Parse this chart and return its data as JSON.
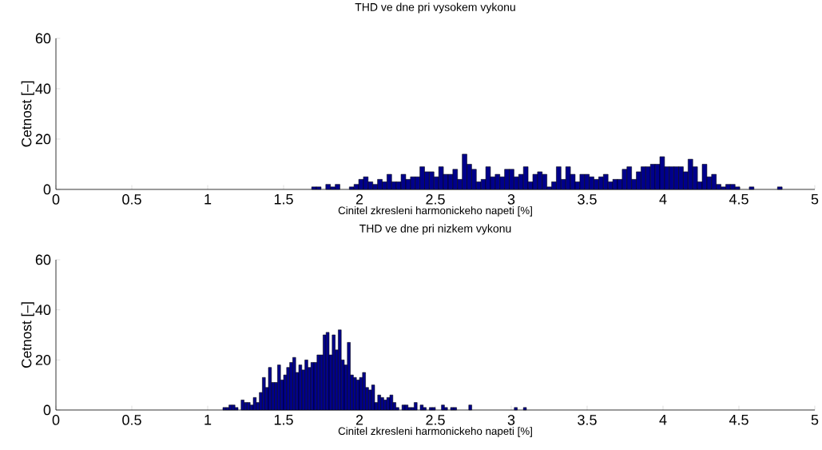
{
  "chart_data": [
    {
      "type": "histogram",
      "title": "THD ve dne pri vysokem vykonu",
      "xlabel": "Cinitel zkresleni harmonickeho napeti [%]",
      "ylabel": "Cetnost [–]",
      "color": "#00008b",
      "bins": [
        1.685,
        1.716,
        1.747,
        1.778,
        1.809,
        1.84,
        1.871,
        1.902,
        1.933,
        1.964,
        1.995,
        2.026,
        2.057,
        2.088,
        2.119,
        2.15,
        2.181,
        2.212,
        2.243,
        2.274,
        2.305,
        2.336,
        2.367,
        2.398,
        2.429,
        2.46,
        2.491,
        2.522,
        2.553,
        2.584,
        2.615,
        2.646,
        2.677,
        2.708,
        2.739,
        2.77,
        2.801,
        2.832,
        2.863,
        2.894,
        2.925,
        2.956,
        2.987,
        3.018,
        3.049,
        3.08,
        3.111,
        3.142,
        3.173,
        3.204,
        3.235,
        3.266,
        3.297,
        3.328,
        3.359,
        3.39,
        3.421,
        3.452,
        3.483,
        3.514,
        3.545,
        3.576,
        3.607,
        3.638,
        3.669,
        3.7,
        3.731,
        3.762,
        3.793,
        3.824,
        3.855,
        3.886,
        3.917,
        3.948,
        3.979,
        4.01,
        4.041,
        4.072,
        4.103,
        4.134,
        4.165,
        4.196,
        4.227,
        4.258,
        4.289,
        4.32,
        4.351,
        4.382,
        4.413,
        4.444,
        4.475,
        4.506,
        4.537,
        4.568,
        4.599,
        4.63,
        4.661,
        4.692,
        4.723,
        4.754,
        4.785
      ],
      "values": [
        1,
        1,
        0,
        2,
        1,
        2,
        0,
        0,
        1,
        2,
        4,
        5,
        3,
        2,
        4,
        3,
        6,
        3,
        3,
        6,
        4,
        5,
        5,
        9,
        7,
        7,
        5,
        9,
        6,
        6,
        8,
        4,
        14,
        10,
        8,
        3,
        4,
        9,
        5,
        6,
        5,
        8,
        8,
        5,
        6,
        9,
        3,
        6,
        7,
        6,
        1,
        3,
        9,
        4,
        9,
        6,
        3,
        6,
        6,
        5,
        4,
        5,
        6,
        3,
        4,
        4,
        8,
        9,
        4,
        7,
        9,
        9,
        10,
        10,
        13,
        9,
        9,
        9,
        9,
        7,
        12,
        9,
        3,
        10,
        5,
        6,
        2,
        1,
        2,
        2,
        1,
        0,
        0,
        1,
        0,
        0,
        0,
        0,
        0,
        1
      ],
      "xlim": [
        0,
        5
      ],
      "ylim": [
        0,
        60
      ],
      "xticks": [
        0,
        0.5,
        1,
        1.5,
        2,
        2.5,
        3,
        3.5,
        4,
        4.5,
        5
      ],
      "yticks": [
        0,
        20,
        40,
        60
      ]
    },
    {
      "type": "histogram",
      "title": "THD ve dne pri nizkem vykonu",
      "xlabel": "Cinitel zkresleni harmonickeho napeti [%]",
      "ylabel": "Cetnost [–]",
      "color": "#00008b",
      "bins": [
        1.1,
        1.12,
        1.14,
        1.16,
        1.18,
        1.2,
        1.22,
        1.24,
        1.26,
        1.28,
        1.3,
        1.32,
        1.34,
        1.36,
        1.38,
        1.4,
        1.42,
        1.44,
        1.46,
        1.48,
        1.5,
        1.52,
        1.54,
        1.56,
        1.58,
        1.6,
        1.62,
        1.64,
        1.66,
        1.68,
        1.7,
        1.72,
        1.74,
        1.76,
        1.78,
        1.8,
        1.82,
        1.84,
        1.86,
        1.88,
        1.9,
        1.92,
        1.94,
        1.96,
        1.98,
        2.0,
        2.02,
        2.04,
        2.06,
        2.08,
        2.1,
        2.12,
        2.14,
        2.16,
        2.18,
        2.2,
        2.22,
        2.24,
        2.26,
        2.28,
        2.3,
        2.32,
        2.34,
        2.36,
        2.38,
        2.4,
        2.42,
        2.44,
        2.46,
        2.48,
        2.5,
        2.52,
        2.54,
        2.56,
        2.58,
        2.6,
        2.62,
        2.64,
        2.66,
        2.68,
        2.7,
        2.72,
        2.74,
        2.76,
        2.78,
        2.8,
        2.82,
        2.84,
        2.86,
        2.88,
        2.9,
        2.92,
        2.94,
        2.96,
        2.98,
        3.0,
        3.02,
        3.04,
        3.06,
        3.08,
        3.1
      ],
      "values": [
        1,
        1,
        2,
        2,
        1,
        0,
        4,
        3,
        3,
        2,
        5,
        3,
        7,
        13,
        9,
        17,
        11,
        11,
        18,
        12,
        14,
        17,
        19,
        21,
        15,
        18,
        16,
        20,
        17,
        19,
        19,
        22,
        22,
        30,
        31,
        22,
        30,
        24,
        32,
        20,
        18,
        27,
        14,
        13,
        12,
        13,
        15,
        9,
        8,
        10,
        3,
        6,
        5,
        4,
        5,
        6,
        3,
        1,
        0,
        2,
        2,
        1,
        1,
        3,
        0,
        2,
        1,
        0,
        1,
        1,
        0,
        0,
        2,
        1,
        0,
        1,
        1,
        0,
        0,
        0,
        0,
        2,
        0,
        0,
        0,
        0,
        0,
        0,
        0,
        0,
        0,
        0,
        0,
        0,
        0,
        0,
        1,
        0,
        0,
        1
      ],
      "xlim": [
        0,
        5
      ],
      "ylim": [
        0,
        60
      ],
      "xticks": [
        0,
        0.5,
        1,
        1.5,
        2,
        2.5,
        3,
        3.5,
        4,
        4.5,
        5
      ],
      "yticks": [
        0,
        20,
        40,
        60
      ]
    }
  ]
}
